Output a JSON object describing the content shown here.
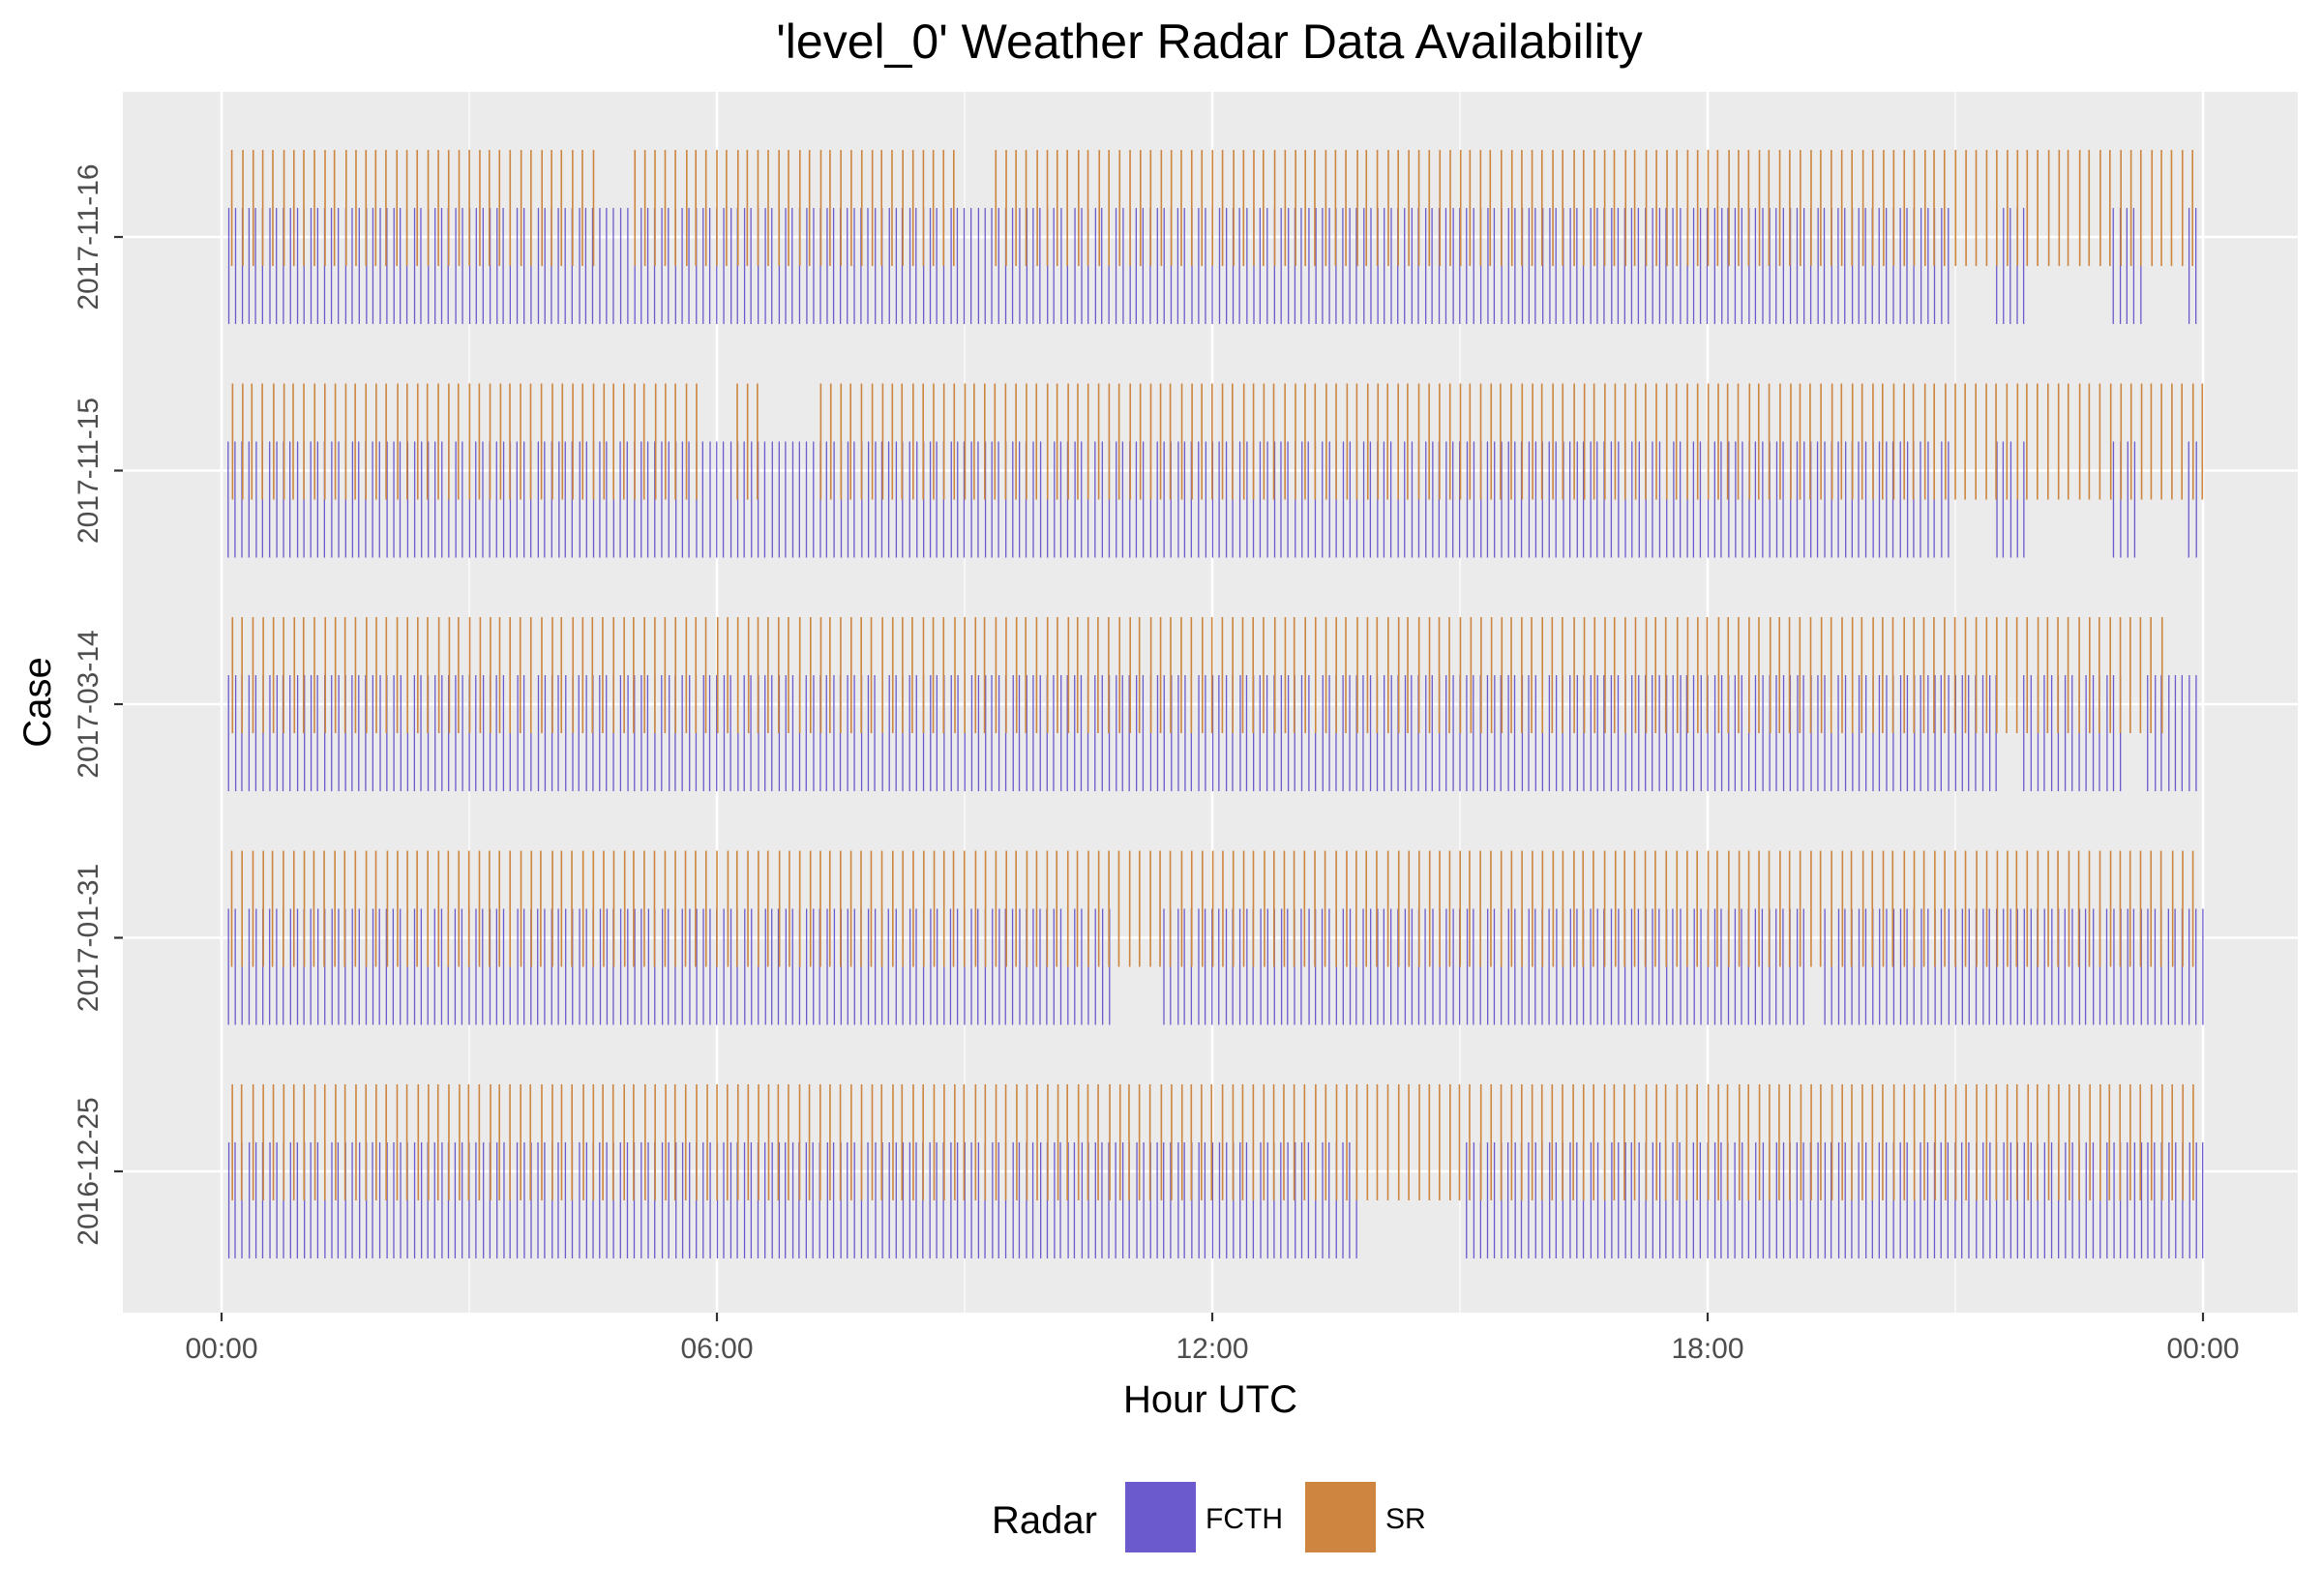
{
  "chart_data": {
    "type": "event-timeline",
    "title": "'level_0' Weather Radar Data Availability",
    "xlabel": "Hour UTC",
    "ylabel": "Case",
    "x_range_hours": [
      0,
      24
    ],
    "x_ticks": [
      {
        "hour": 0,
        "label": "00:00"
      },
      {
        "hour": 6,
        "label": "06:00"
      },
      {
        "hour": 12,
        "label": "12:00"
      },
      {
        "hour": 18,
        "label": "18:00"
      },
      {
        "hour": 24,
        "label": "00:00"
      }
    ],
    "categories": [
      "2016-12-25",
      "2017-01-31",
      "2017-03-14",
      "2017-11-15",
      "2017-11-16"
    ],
    "grid": true,
    "legend": {
      "title": "Radar",
      "position": "bottom",
      "entries": [
        {
          "name": "FCTH",
          "color": "#6a5acd"
        },
        {
          "name": "SR",
          "color": "#cd853f"
        }
      ]
    },
    "series": [
      {
        "name": "FCTH",
        "color": "#6a5acd",
        "interval_minutes": 5,
        "cases": {
          "2016-12-25": {
            "gaps": [
              [
                13.75,
                15.0
              ]
            ]
          },
          "2017-01-31": {
            "gaps": [
              [
                10.8,
                11.4
              ],
              [
                19.2,
                19.4
              ]
            ]
          },
          "2017-03-14": {
            "gaps": [
              [
                21.5,
                21.8
              ],
              [
                23.0,
                23.3
              ]
            ]
          },
          "2017-11-15": {
            "gaps": [
              [
                20.95,
                21.5
              ],
              [
                21.9,
                22.9
              ],
              [
                23.25,
                23.8
              ]
            ]
          },
          "2017-11-16": {
            "gaps": [
              [
                20.95,
                21.5
              ],
              [
                21.9,
                22.9
              ],
              [
                23.25,
                23.8
              ]
            ]
          }
        }
      },
      {
        "name": "SR",
        "color": "#cd853f",
        "interval_minutes": 7.5,
        "cases": {
          "2016-12-25": {
            "gaps": []
          },
          "2017-01-31": {
            "gaps": []
          },
          "2017-03-14": {
            "gaps": [
              [
                23.6,
                24.0
              ]
            ]
          },
          "2017-11-15": {
            "gaps": [
              [
                5.85,
                6.2
              ],
              [
                6.5,
                7.2
              ]
            ]
          },
          "2017-11-16": {
            "gaps": [
              [
                4.55,
                5.0
              ],
              [
                9.0,
                9.3
              ]
            ]
          }
        }
      }
    ]
  }
}
